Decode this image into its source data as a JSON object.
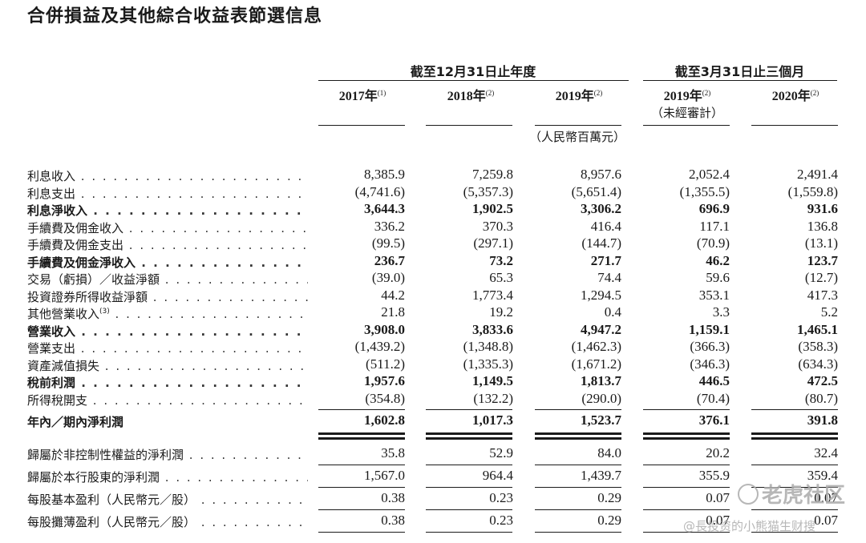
{
  "title": "合併損益及其他綜合收益表節選信息",
  "header": {
    "group_annual": "截至12月31日止年度",
    "group_quarter": "截至3月31日止三個月",
    "unit": "（人民幣百萬元）",
    "columns": [
      {
        "year": "2017年",
        "note": "(1)",
        "sub": ""
      },
      {
        "year": "2018年",
        "note": "(2)",
        "sub": ""
      },
      {
        "year": "2019年",
        "note": "(2)",
        "sub": ""
      },
      {
        "year": "2019年",
        "note": "(2)",
        "sub": "（未經審計）"
      },
      {
        "year": "2020年",
        "note": "(2)",
        "sub": ""
      }
    ]
  },
  "rows": [
    {
      "label": "利息收入",
      "note": "",
      "bold": false,
      "values": [
        "8,385.9",
        "7,259.8",
        "8,957.6",
        "2,052.4",
        "2,491.4"
      ]
    },
    {
      "label": "利息支出",
      "note": "",
      "bold": false,
      "values": [
        "(4,741.6)",
        "(5,357.3)",
        "(5,651.4)",
        "(1,355.5)",
        "(1,559.8)"
      ]
    },
    {
      "label": "利息淨收入",
      "note": "",
      "bold": true,
      "values": [
        "3,644.3",
        "1,902.5",
        "3,306.2",
        "696.9",
        "931.6"
      ]
    },
    {
      "label": "手續費及佣金收入",
      "note": "",
      "bold": false,
      "values": [
        "336.2",
        "370.3",
        "416.4",
        "117.1",
        "136.8"
      ]
    },
    {
      "label": "手續費及佣金支出",
      "note": "",
      "bold": false,
      "values": [
        "(99.5)",
        "(297.1)",
        "(144.7)",
        "(70.9)",
        "(13.1)"
      ]
    },
    {
      "label": "手續費及佣金淨收入",
      "note": "",
      "bold": true,
      "values": [
        "236.7",
        "73.2",
        "271.7",
        "46.2",
        "123.7"
      ]
    },
    {
      "label": "交易（虧損）／收益淨額",
      "note": "",
      "bold": false,
      "values": [
        "(39.0)",
        "65.3",
        "74.4",
        "59.6",
        "(12.7)"
      ]
    },
    {
      "label": "投資證券所得收益淨額",
      "note": "",
      "bold": false,
      "values": [
        "44.2",
        "1,773.4",
        "1,294.5",
        "353.1",
        "417.3"
      ]
    },
    {
      "label": "其他營業收入",
      "note": "(3)",
      "bold": false,
      "values": [
        "21.8",
        "19.2",
        "0.4",
        "3.3",
        "5.2"
      ]
    },
    {
      "label": "營業收入",
      "note": "",
      "bold": true,
      "values": [
        "3,908.0",
        "3,833.6",
        "4,947.2",
        "1,159.1",
        "1,465.1"
      ]
    },
    {
      "label": "營業支出",
      "note": "",
      "bold": false,
      "values": [
        "(1,439.2)",
        "(1,348.8)",
        "(1,462.3)",
        "(366.3)",
        "(358.3)"
      ]
    },
    {
      "label": "資產減值損失",
      "note": "",
      "bold": false,
      "values": [
        "(511.2)",
        "(1,335.3)",
        "(1,671.2)",
        "(346.3)",
        "(634.3)"
      ]
    },
    {
      "label": "稅前利潤",
      "note": "",
      "bold": true,
      "values": [
        "1,957.6",
        "1,149.5",
        "1,813.7",
        "446.5",
        "472.5"
      ]
    },
    {
      "label": "所得稅開支",
      "note": "",
      "bold": false,
      "values": [
        "(354.8)",
        "(132.2)",
        "(290.0)",
        "(70.4)",
        "(80.7)"
      ]
    },
    {
      "label": "年內／期內淨利潤",
      "note": "",
      "bold": true,
      "values": [
        "1,602.8",
        "1,017.3",
        "1,523.7",
        "376.1",
        "391.8"
      ]
    },
    {
      "label": "歸屬於非控制性權益的淨利潤",
      "note": "",
      "bold": false,
      "values": [
        "35.8",
        "52.9",
        "84.0",
        "20.2",
        "32.4"
      ]
    },
    {
      "label": "歸屬於本行股東的淨利潤",
      "note": "",
      "bold": false,
      "values": [
        "1,567.0",
        "964.4",
        "1,439.7",
        "355.9",
        "359.4"
      ]
    },
    {
      "label": "每股基本盈利（人民幣元／股）",
      "note": "",
      "bold": false,
      "values": [
        "0.38",
        "0.23",
        "0.29",
        "0.07",
        "0.07"
      ]
    },
    {
      "label": "每股攤薄盈利（人民幣元／股）",
      "note": "",
      "bold": false,
      "values": [
        "0.38",
        "0.23",
        "0.29",
        "0.07",
        "0.07"
      ]
    }
  ],
  "watermark": {
    "logo_text": "老虎社区",
    "handle": "@長投资的小熊猫生财搜"
  }
}
